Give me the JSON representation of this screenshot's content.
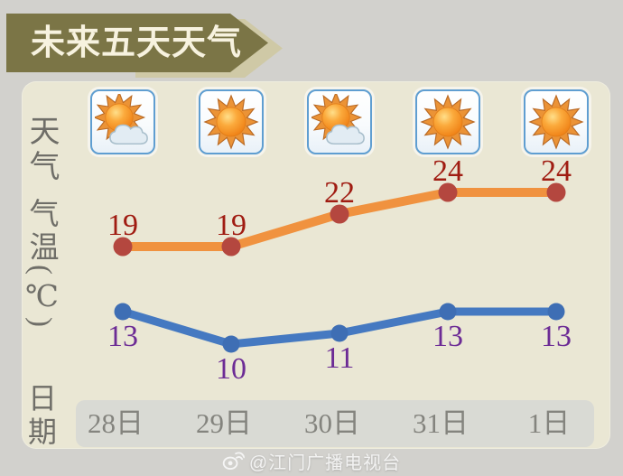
{
  "header": {
    "title": "未来五天天气"
  },
  "row_labels": {
    "weather": "天气",
    "temperature": "气温(℃)",
    "date": "日期"
  },
  "weather_row": {
    "icons": [
      "partly-cloudy-icon",
      "sunny-icon",
      "partly-cloudy-icon",
      "sunny-icon",
      "sunny-icon"
    ]
  },
  "chart_data": {
    "type": "line",
    "categories": [
      "28日",
      "29日",
      "30日",
      "31日",
      "1日"
    ],
    "series": [
      {
        "name": "high_temperature",
        "values": [
          19,
          19,
          22,
          24,
          24
        ],
        "line_color": "#f0923f",
        "dot_color": "#b4473f",
        "label_color": "#a01c12",
        "label_position": "above"
      },
      {
        "name": "low_temperature",
        "values": [
          13,
          10,
          11,
          13,
          13
        ],
        "line_color": "#4579c1",
        "dot_color": "#3e6eb4",
        "label_color": "#6c2b95",
        "label_position": "below"
      }
    ],
    "title": "未来五天天气",
    "xlabel": "日期",
    "ylabel": "气温(℃)",
    "grid": false,
    "legend": false
  },
  "watermark": {
    "source": "@江门广播电视台",
    "icon": "weibo-icon"
  },
  "colors": {
    "background": "#d2d1cd",
    "panel": "#eae7d4",
    "banner": "#7b7546",
    "banner_shadow": "#cfc9a6",
    "banner_text": "#f7f2df",
    "icon_border": "#5f9ed1",
    "date_strip": "#d9dad4",
    "date_text": "#84847e",
    "row_label_text": "#6f6e68"
  }
}
